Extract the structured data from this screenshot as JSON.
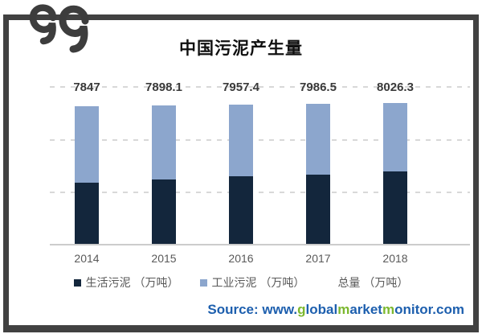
{
  "title": "中国污泥产生量",
  "chart_data": {
    "type": "bar",
    "stacked": true,
    "title": "中国污泥产生量",
    "categories": [
      "2014",
      "2015",
      "2016",
      "2017",
      "2018"
    ],
    "series": [
      {
        "name": "生活污泥（万吨）",
        "color": "#13263c",
        "estimated": true,
        "values": [
          3520,
          3700,
          3880,
          3980,
          4160
        ]
      },
      {
        "name": "工业污泥（万吨）",
        "color": "#8ca6cd",
        "estimated": true,
        "values": [
          4327,
          4198.1,
          4077.4,
          4006.5,
          3866.3
        ]
      }
    ],
    "totals": {
      "name": "总量（万吨）",
      "values": [
        7847,
        7898.1,
        7957.4,
        7986.5,
        8026.3
      ]
    },
    "total_labels": [
      "7847",
      "7898.1",
      "7957.4",
      "7986.5",
      "8026.3"
    ],
    "xlabel": "",
    "ylabel": "",
    "ylim": [
      0,
      9000
    ],
    "gridline_interval": 3000,
    "grid": "dashed-horizontal",
    "legend_position": "bottom"
  },
  "legend": {
    "items": [
      {
        "label": "生活污泥 （万吨）",
        "marker_color": "#13263c"
      },
      {
        "label": "工业污泥 （万吨）",
        "marker_color": "#8ca6cd"
      },
      {
        "label": "总量 （万吨）",
        "marker_color": "none"
      }
    ]
  },
  "source": {
    "segments": [
      {
        "text": "Source: www.",
        "color": "#1d5fae"
      },
      {
        "text": "g",
        "color": "#7cb82f"
      },
      {
        "text": "lobal",
        "color": "#1d5fae"
      },
      {
        "text": "m",
        "color": "#7cb82f"
      },
      {
        "text": "arket",
        "color": "#1d5fae"
      },
      {
        "text": "m",
        "color": "#7cb82f"
      },
      {
        "text": "onitor.com",
        "color": "#1d5fae"
      }
    ]
  },
  "colors": {
    "frame": "#414141",
    "logo": "#3d3d3d",
    "grid": "#d8d8d8",
    "axis": "#cccccc",
    "value_label": "#3a3a3a",
    "tick_label": "#595959"
  }
}
